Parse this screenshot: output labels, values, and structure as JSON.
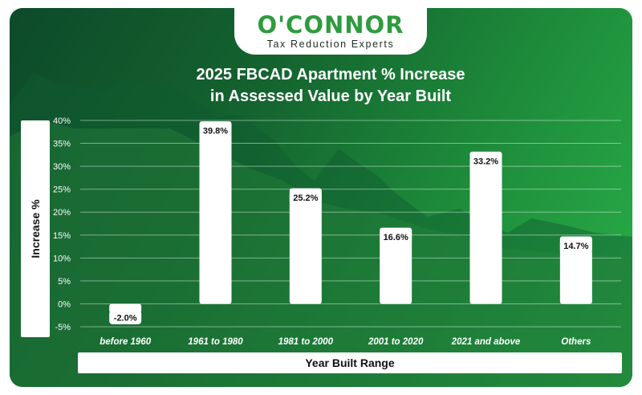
{
  "brand": {
    "name": "O'CONNOR",
    "tagline": "Tax Reduction Experts"
  },
  "colors": {
    "background_dark": "#0d4a2a",
    "background_light": "#2bb24a",
    "bar": "#ffffff",
    "brand_green": "#2e9b3e"
  },
  "chart_data": {
    "type": "bar",
    "title_line1": "2025 FBCAD Apartment % Increase",
    "title_line2": "in Assessed Value by Year Built",
    "xlabel": "Year Built Range",
    "ylabel": "Increase %",
    "categories": [
      "before 1960",
      "1961 to 1980",
      "1981 to 2000",
      "2001 to 2020",
      "2021 and above",
      "Others"
    ],
    "values": [
      -2.0,
      39.8,
      25.2,
      16.6,
      33.2,
      14.7
    ],
    "data_labels": [
      "-2.0%",
      "39.8%",
      "25.2%",
      "16.6%",
      "33.2%",
      "14.7%"
    ],
    "ylim": [
      -5,
      40
    ],
    "yticks": [
      40,
      35,
      30,
      25,
      20,
      15,
      10,
      5,
      0,
      -5
    ],
    "ytick_labels": [
      "40%",
      "35%",
      "30%",
      "25%",
      "20%",
      "15%",
      "10%",
      "5%",
      "0%",
      "-5%"
    ],
    "grid": true,
    "legend": "none"
  }
}
